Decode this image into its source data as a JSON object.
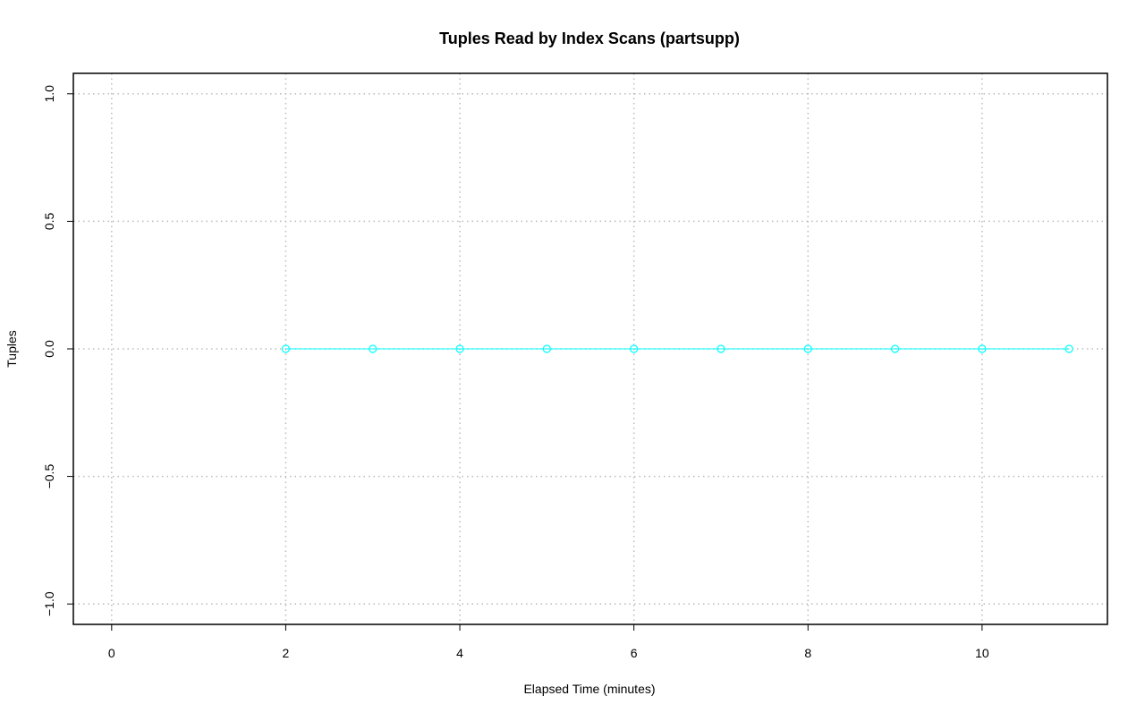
{
  "chart_data": {
    "type": "line",
    "title": "Tuples Read by Index Scans (partsupp)",
    "x_label": "Elapsed Time (minutes)",
    "y_label": "Tuples",
    "x": [
      2,
      3,
      4,
      5,
      6,
      7,
      8,
      9,
      10,
      11
    ],
    "series": [
      {
        "color": "#00ffff",
        "values": [
          0,
          0,
          0,
          0,
          0,
          0,
          0,
          0,
          0,
          0
        ]
      }
    ],
    "xlim": [
      -0.44,
      11.44
    ],
    "ylim": [
      -1.08,
      1.08
    ],
    "xticks": [
      0,
      2,
      4,
      6,
      8,
      10
    ],
    "yticks": [
      {
        "value": -1,
        "label": "−1.0"
      },
      {
        "value": -0.5,
        "label": "−0.5"
      },
      {
        "value": 0,
        "label": "0.0"
      },
      {
        "value": 0.5,
        "label": "0.5"
      },
      {
        "value": 1,
        "label": "1.0"
      }
    ],
    "grid": true
  }
}
